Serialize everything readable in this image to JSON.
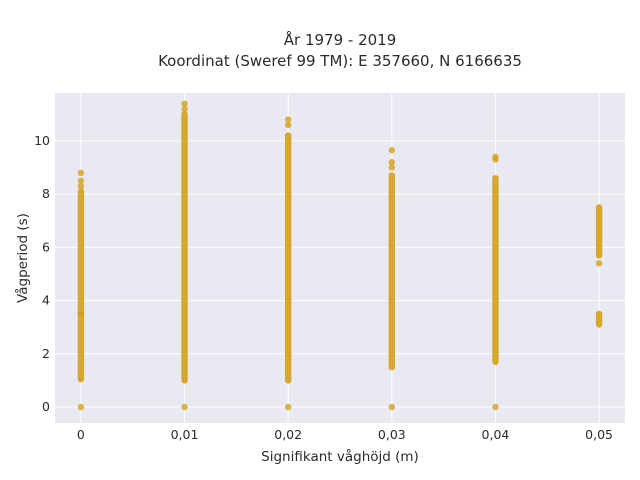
{
  "chart_data": {
    "type": "scatter",
    "title_lines": [
      "År 1979 - 2019",
      "Koordinat (Sweref 99 TM): E 357660, N 6166635"
    ],
    "xlabel": "Signifikant våghöjd (m)",
    "ylabel": "Vågperiod (s)",
    "x_ticks": [
      0,
      0.01,
      0.02,
      0.03,
      0.04,
      0.05
    ],
    "x_tick_labels": [
      "0",
      "0,01",
      "0,02",
      "0,03",
      "0,04",
      "0,05"
    ],
    "y_ticks": [
      0,
      2,
      4,
      6,
      8,
      10
    ],
    "y_tick_labels": [
      "0",
      "2",
      "4",
      "6",
      "8",
      "10"
    ],
    "xlim": [
      -0.0025,
      0.0525
    ],
    "ylim": [
      -0.6,
      11.8
    ],
    "grid": true,
    "marker_color": "#D4A017",
    "background_color": "#E9E9F2",
    "series": [
      {
        "x": 0,
        "y_ranges": [
          [
            1.05,
            3.5
          ],
          [
            3.5,
            8.1
          ]
        ],
        "y_points": [
          0,
          8.3,
          8.5,
          8.8
        ]
      },
      {
        "x": 0.01,
        "y_ranges": [
          [
            1.0,
            11.0
          ]
        ],
        "y_points": [
          0,
          11.2,
          11.4
        ]
      },
      {
        "x": 0.02,
        "y_ranges": [
          [
            1.0,
            10.2
          ]
        ],
        "y_points": [
          0,
          10.6,
          10.8
        ]
      },
      {
        "x": 0.03,
        "y_ranges": [
          [
            1.5,
            8.7
          ]
        ],
        "y_points": [
          0,
          9.0,
          9.2,
          9.65
        ]
      },
      {
        "x": 0.04,
        "y_ranges": [
          [
            1.7,
            8.6
          ]
        ],
        "y_points": [
          0,
          9.3,
          9.4
        ]
      },
      {
        "x": 0.05,
        "y_ranges": [
          [
            5.7,
            7.5
          ],
          [
            3.1,
            3.5
          ]
        ],
        "y_points": [
          5.4
        ]
      }
    ]
  }
}
